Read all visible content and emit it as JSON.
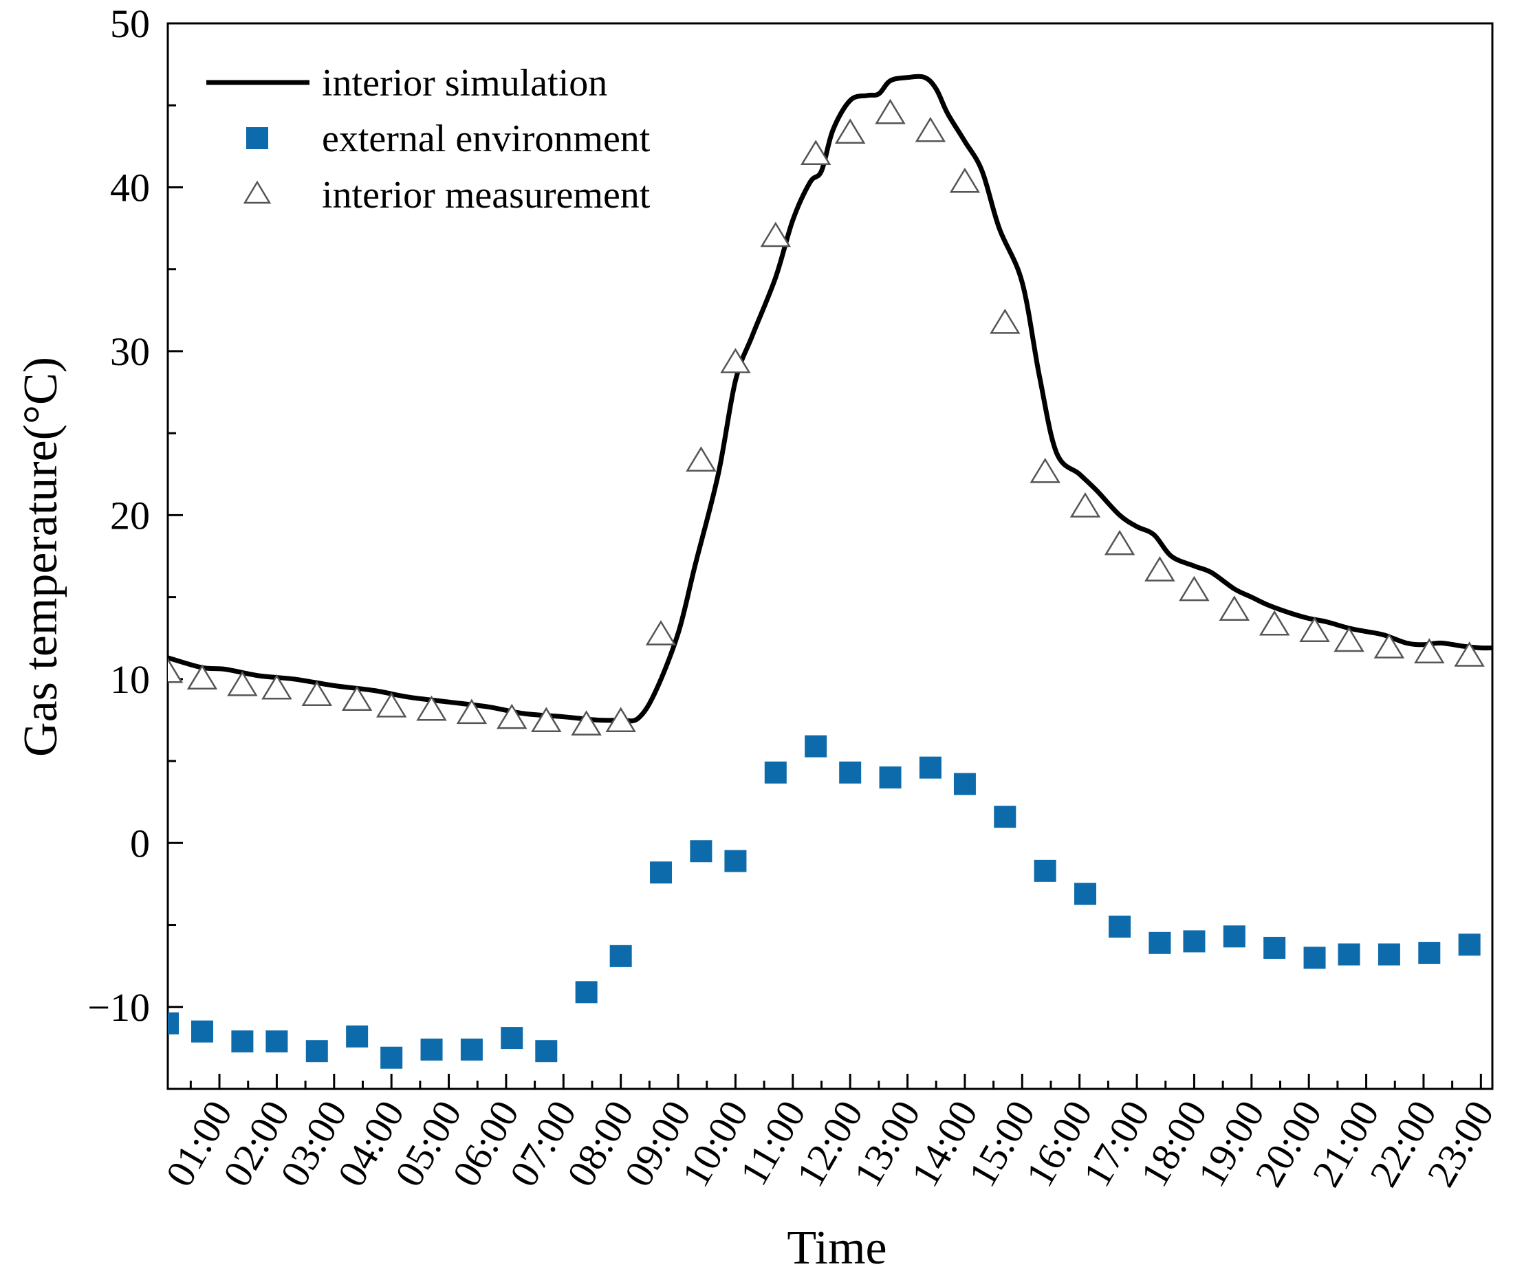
{
  "chart_data": {
    "type": "line",
    "xlabel": "Time",
    "ylabel": "Gas temperature(°C)",
    "xlim": [
      0.1,
      23.2
    ],
    "ylim": [
      -15,
      50
    ],
    "yticks": [
      -10,
      0,
      10,
      20,
      30,
      40,
      50
    ],
    "xticks": [
      {
        "value": 1,
        "label": "01:00"
      },
      {
        "value": 2,
        "label": "02:00"
      },
      {
        "value": 3,
        "label": "03:00"
      },
      {
        "value": 4,
        "label": "04:00"
      },
      {
        "value": 5,
        "label": "05:00"
      },
      {
        "value": 6,
        "label": "06:00"
      },
      {
        "value": 7,
        "label": "07:00"
      },
      {
        "value": 8,
        "label": "08:00"
      },
      {
        "value": 9,
        "label": "09:00"
      },
      {
        "value": 10,
        "label": "10:00"
      },
      {
        "value": 11,
        "label": "11:00"
      },
      {
        "value": 12,
        "label": "12:00"
      },
      {
        "value": 13,
        "label": "13:00"
      },
      {
        "value": 14,
        "label": "14:00"
      },
      {
        "value": 15,
        "label": "15:00"
      },
      {
        "value": 16,
        "label": "16:00"
      },
      {
        "value": 17,
        "label": "17:00"
      },
      {
        "value": 18,
        "label": "18:00"
      },
      {
        "value": 19,
        "label": "19:00"
      },
      {
        "value": 20,
        "label": "20:00"
      },
      {
        "value": 21,
        "label": "21:00"
      },
      {
        "value": 22,
        "label": "22:00"
      },
      {
        "value": 23,
        "label": "23:00"
      }
    ],
    "legend_position": "top-left",
    "series": [
      {
        "name": "interior simulation",
        "kind": "line",
        "color": "#000000",
        "x": [
          0.1,
          0.7,
          1.1,
          1.7,
          2.3,
          3.0,
          3.7,
          4.3,
          5.0,
          5.7,
          6.3,
          7.0,
          7.6,
          8.0,
          8.3,
          8.6,
          9.0,
          9.3,
          9.7,
          10.0,
          10.3,
          10.7,
          11.0,
          11.3,
          11.5,
          11.7,
          12.0,
          12.3,
          12.5,
          12.7,
          13.0,
          13.3,
          13.5,
          13.7,
          14.0,
          14.3,
          14.6,
          15.0,
          15.3,
          15.6,
          16.0,
          16.3,
          16.7,
          17.0,
          17.3,
          17.6,
          18.0,
          18.3,
          18.7,
          19.0,
          19.3,
          19.7,
          20.0,
          20.3,
          20.7,
          21.0,
          21.3,
          21.7,
          22.0,
          22.3,
          22.7,
          23.0,
          23.2
        ],
        "y": [
          11.3,
          10.7,
          10.6,
          10.2,
          10.0,
          9.6,
          9.3,
          8.9,
          8.6,
          8.3,
          7.9,
          7.7,
          7.5,
          7.5,
          7.6,
          9.2,
          12.8,
          17.0,
          22.5,
          28.2,
          31.0,
          34.5,
          38.0,
          40.3,
          41.0,
          43.5,
          45.3,
          45.6,
          45.7,
          46.5,
          46.7,
          46.7,
          46.0,
          44.5,
          42.8,
          41.0,
          37.5,
          34.2,
          28.5,
          23.8,
          22.5,
          21.5,
          20.0,
          19.3,
          18.8,
          17.5,
          16.9,
          16.5,
          15.5,
          15.0,
          14.5,
          14.0,
          13.7,
          13.5,
          13.1,
          12.9,
          12.7,
          12.2,
          12.1,
          12.2,
          12.0,
          11.9,
          11.9
        ]
      },
      {
        "name": "external environment",
        "kind": "scatter",
        "marker": "square",
        "color": "#0d6aab",
        "x": [
          0.1,
          0.7,
          1.4,
          2.0,
          2.7,
          3.4,
          4.0,
          4.7,
          5.4,
          6.1,
          6.7,
          7.4,
          8.0,
          8.7,
          9.4,
          10.0,
          10.7,
          11.4,
          12.0,
          12.7,
          13.4,
          14.0,
          14.7,
          15.4,
          16.1,
          16.7,
          17.4,
          18.0,
          18.7,
          19.4,
          20.1,
          20.7,
          21.4,
          22.1,
          22.8
        ],
        "y": [
          -11.0,
          -11.5,
          -12.1,
          -12.1,
          -12.7,
          -11.8,
          -13.1,
          -12.6,
          -12.6,
          -11.9,
          -12.7,
          -9.1,
          -6.9,
          -1.8,
          -0.5,
          -1.1,
          4.3,
          5.9,
          4.3,
          4.0,
          4.6,
          3.6,
          1.6,
          -1.7,
          -3.1,
          -5.1,
          -6.1,
          -6.0,
          -5.7,
          -6.4,
          -7.0,
          -6.8,
          -6.8,
          -6.7,
          -6.2
        ]
      },
      {
        "name": "interior measurement",
        "kind": "scatter",
        "marker": "triangle-open",
        "color": "#555555",
        "x": [
          0.1,
          0.7,
          1.4,
          2.0,
          2.7,
          3.4,
          4.0,
          4.7,
          5.4,
          6.1,
          6.7,
          7.4,
          8.0,
          8.7,
          9.4,
          10.0,
          10.7,
          11.4,
          12.0,
          12.7,
          13.4,
          14.0,
          14.7,
          15.4,
          16.1,
          16.7,
          17.4,
          18.0,
          18.7,
          19.4,
          20.1,
          20.7,
          21.4,
          22.1,
          22.8
        ],
        "y": [
          10.4,
          10.0,
          9.6,
          9.4,
          9.0,
          8.7,
          8.3,
          8.1,
          7.9,
          7.6,
          7.4,
          7.2,
          7.4,
          12.7,
          23.3,
          29.3,
          37.0,
          42.0,
          43.3,
          44.5,
          43.4,
          40.3,
          31.7,
          22.6,
          20.5,
          18.2,
          16.6,
          15.4,
          14.2,
          13.3,
          12.9,
          12.3,
          11.9,
          11.6,
          11.4
        ]
      }
    ]
  }
}
